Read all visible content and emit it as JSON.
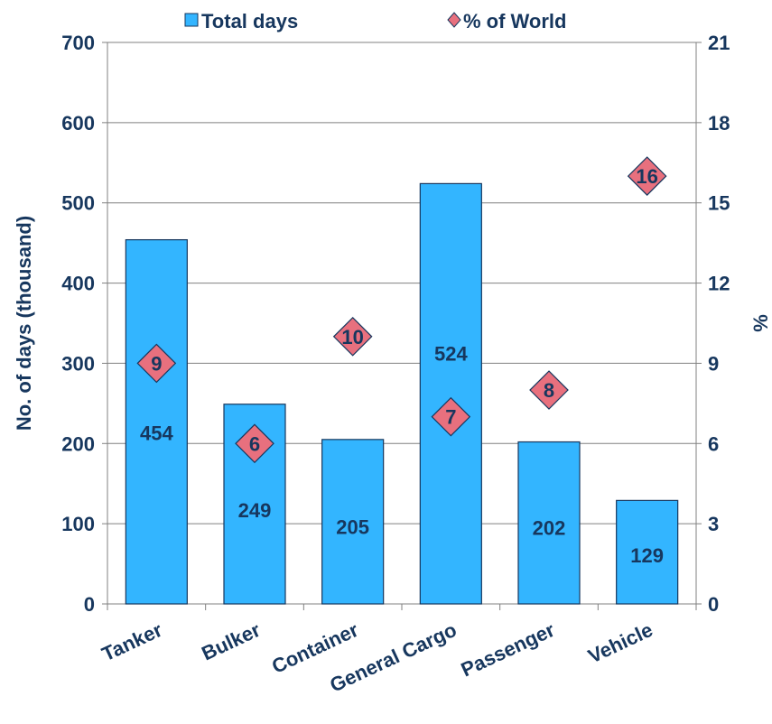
{
  "colors": {
    "bar_fill": "#33b5ff",
    "bar_stroke": "#17375e",
    "marker_fill": "#e8707e",
    "marker_stroke": "#17375e",
    "text": "#17375e",
    "grid": "#808080"
  },
  "chart_data": {
    "type": "bar",
    "categories": [
      "Tanker",
      "Bulker",
      "Container",
      "General Cargo",
      "Passenger",
      "Vehicle"
    ],
    "series": [
      {
        "name": "Total days",
        "type": "bar",
        "axis": "left",
        "values": [
          454,
          249,
          205,
          524,
          202,
          129
        ]
      },
      {
        "name": "% of World",
        "type": "scatter",
        "marker": "diamond",
        "axis": "right",
        "values": [
          9,
          6,
          10,
          7,
          8,
          16
        ]
      }
    ],
    "ylabel": "No. of days (thousand)",
    "y2label": "%",
    "ylim": [
      0,
      700
    ],
    "y2lim": [
      0,
      21
    ],
    "yticks": [
      0,
      100,
      200,
      300,
      400,
      500,
      600,
      700
    ],
    "y2ticks": [
      0,
      3,
      6,
      9,
      12,
      15,
      18,
      21
    ],
    "grid": true,
    "legend_position": "top"
  }
}
